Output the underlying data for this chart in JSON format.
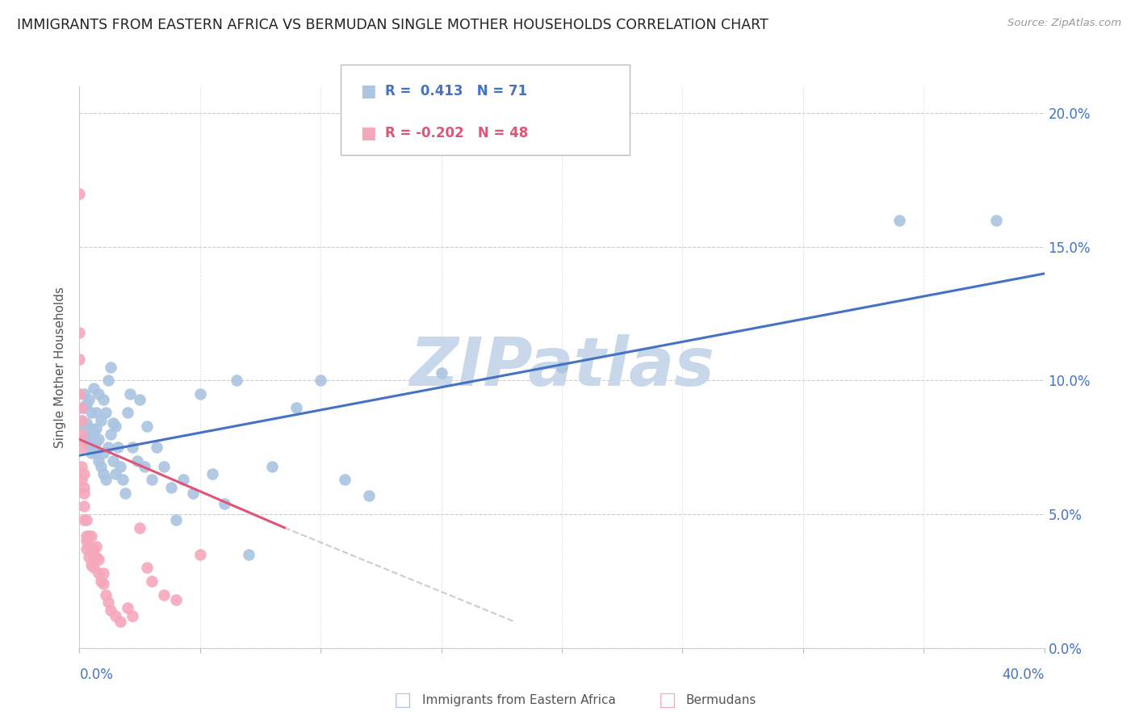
{
  "title": "IMMIGRANTS FROM EASTERN AFRICA VS BERMUDAN SINGLE MOTHER HOUSEHOLDS CORRELATION CHART",
  "source": "Source: ZipAtlas.com",
  "ylabel": "Single Mother Households",
  "right_yticks": [
    "0.0%",
    "5.0%",
    "10.0%",
    "15.0%",
    "20.0%"
  ],
  "right_ytick_vals": [
    0.0,
    0.05,
    0.1,
    0.15,
    0.2
  ],
  "xlim": [
    0.0,
    0.4
  ],
  "ylim": [
    0.0,
    0.21
  ],
  "legend_blue_r": "0.413",
  "legend_blue_n": "71",
  "legend_pink_r": "-0.202",
  "legend_pink_n": "48",
  "blue_color": "#aac4e2",
  "pink_color": "#f5a8bc",
  "blue_line_color": "#4472c4",
  "pink_line_color": "#e05575",
  "pink_dash_color": "#cccccc",
  "watermark": "ZIPatlas",
  "watermark_color": "#c8d8ea",
  "blue_scatter_x": [
    0.001,
    0.001,
    0.002,
    0.002,
    0.002,
    0.003,
    0.003,
    0.003,
    0.004,
    0.004,
    0.004,
    0.005,
    0.005,
    0.005,
    0.006,
    0.006,
    0.006,
    0.007,
    0.007,
    0.007,
    0.007,
    0.008,
    0.008,
    0.008,
    0.009,
    0.009,
    0.01,
    0.01,
    0.01,
    0.011,
    0.011,
    0.012,
    0.012,
    0.013,
    0.013,
    0.014,
    0.014,
    0.015,
    0.015,
    0.016,
    0.017,
    0.018,
    0.019,
    0.02,
    0.021,
    0.022,
    0.024,
    0.025,
    0.027,
    0.028,
    0.03,
    0.032,
    0.035,
    0.038,
    0.04,
    0.043,
    0.047,
    0.05,
    0.055,
    0.06,
    0.065,
    0.07,
    0.08,
    0.09,
    0.1,
    0.11,
    0.12,
    0.15,
    0.2,
    0.34,
    0.38
  ],
  "blue_scatter_y": [
    0.078,
    0.085,
    0.082,
    0.09,
    0.095,
    0.078,
    0.084,
    0.091,
    0.076,
    0.08,
    0.093,
    0.073,
    0.082,
    0.088,
    0.075,
    0.081,
    0.097,
    0.073,
    0.077,
    0.082,
    0.088,
    0.07,
    0.078,
    0.095,
    0.068,
    0.085,
    0.065,
    0.073,
    0.093,
    0.063,
    0.088,
    0.1,
    0.075,
    0.105,
    0.08,
    0.07,
    0.084,
    0.065,
    0.083,
    0.075,
    0.068,
    0.063,
    0.058,
    0.088,
    0.095,
    0.075,
    0.07,
    0.093,
    0.068,
    0.083,
    0.063,
    0.075,
    0.068,
    0.06,
    0.048,
    0.063,
    0.058,
    0.095,
    0.065,
    0.054,
    0.1,
    0.035,
    0.068,
    0.09,
    0.1,
    0.063,
    0.057,
    0.103,
    0.105,
    0.16,
    0.16
  ],
  "blue_line_x": [
    0.0,
    0.4
  ],
  "blue_line_y": [
    0.072,
    0.14
  ],
  "pink_scatter_x": [
    0.0,
    0.0,
    0.0,
    0.0,
    0.001,
    0.001,
    0.001,
    0.001,
    0.001,
    0.001,
    0.002,
    0.002,
    0.002,
    0.002,
    0.002,
    0.003,
    0.003,
    0.003,
    0.003,
    0.004,
    0.004,
    0.004,
    0.005,
    0.005,
    0.005,
    0.006,
    0.006,
    0.006,
    0.007,
    0.007,
    0.008,
    0.008,
    0.009,
    0.01,
    0.01,
    0.011,
    0.012,
    0.013,
    0.015,
    0.017,
    0.02,
    0.022,
    0.025,
    0.028,
    0.03,
    0.035,
    0.04,
    0.05
  ],
  "pink_scatter_y": [
    0.17,
    0.118,
    0.108,
    0.095,
    0.09,
    0.085,
    0.08,
    0.075,
    0.068,
    0.063,
    0.065,
    0.06,
    0.058,
    0.053,
    0.048,
    0.048,
    0.042,
    0.04,
    0.037,
    0.042,
    0.038,
    0.034,
    0.042,
    0.037,
    0.031,
    0.037,
    0.034,
    0.03,
    0.038,
    0.034,
    0.033,
    0.028,
    0.025,
    0.028,
    0.024,
    0.02,
    0.017,
    0.014,
    0.012,
    0.01,
    0.015,
    0.012,
    0.045,
    0.03,
    0.025,
    0.02,
    0.018,
    0.035
  ],
  "pink_line_x": [
    0.0,
    0.085
  ],
  "pink_line_y": [
    0.078,
    0.045
  ],
  "pink_dash_line_x": [
    0.085,
    0.18
  ],
  "pink_dash_line_y": [
    0.045,
    0.01
  ]
}
